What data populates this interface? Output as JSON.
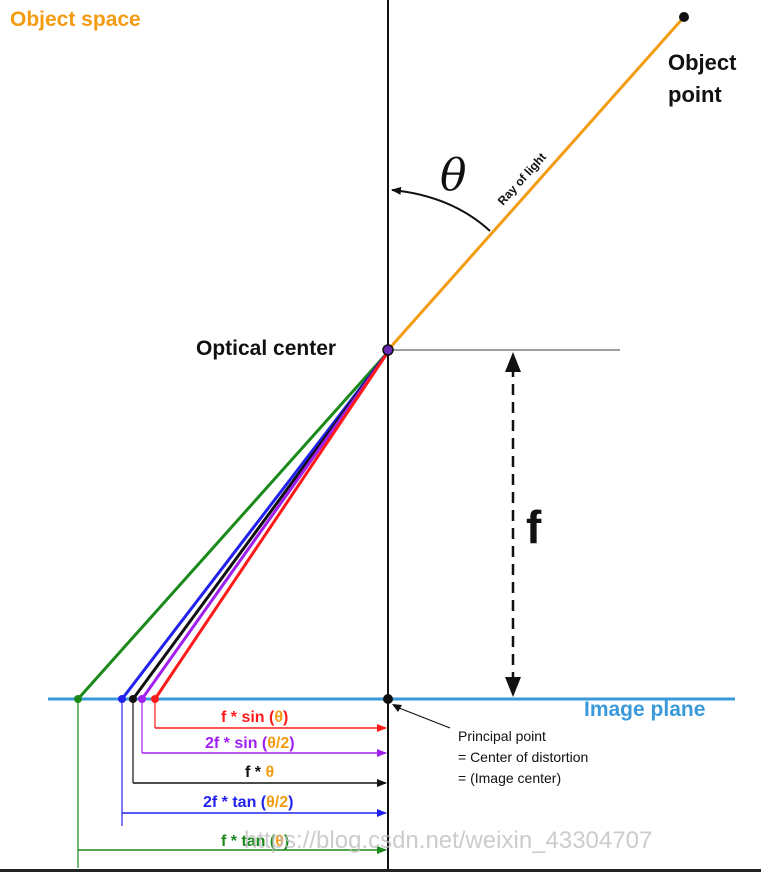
{
  "texts": {
    "object_space": "Object space",
    "object_point_line1": "Object",
    "object_point_line2": "point",
    "theta": "θ",
    "ray_of_light": "Ray of light",
    "optical_center": "Optical center",
    "focal": "f",
    "image_plane": "Image plane",
    "principal_line1": "Principal point",
    "principal_line2": "= Center of distortion",
    "principal_line3": "= (Image center)",
    "watermark": "https://blog.csdn.net/weixin_43304707"
  },
  "projections": [
    {
      "prefix": "f * sin (",
      "arg": "θ",
      "suffix": ")",
      "color": "#ff1a1a"
    },
    {
      "prefix": "2f * sin (",
      "arg": "θ/2",
      "suffix": ")",
      "color": "#a020f0"
    },
    {
      "prefix": "f * ",
      "arg": "θ",
      "suffix": "",
      "color": "#111111"
    },
    {
      "prefix": "2f * tan (",
      "arg": "θ/2",
      "suffix": ")",
      "color": "#2222ee"
    },
    {
      "prefix": "f * tan (",
      "arg": "θ",
      "suffix": ")",
      "color": "#1a8a1a"
    }
  ],
  "colors": {
    "object_space": "#f39c12",
    "ray": "#f39c12",
    "image_plane": "#3a9ad9",
    "arg": "#f39c12"
  }
}
